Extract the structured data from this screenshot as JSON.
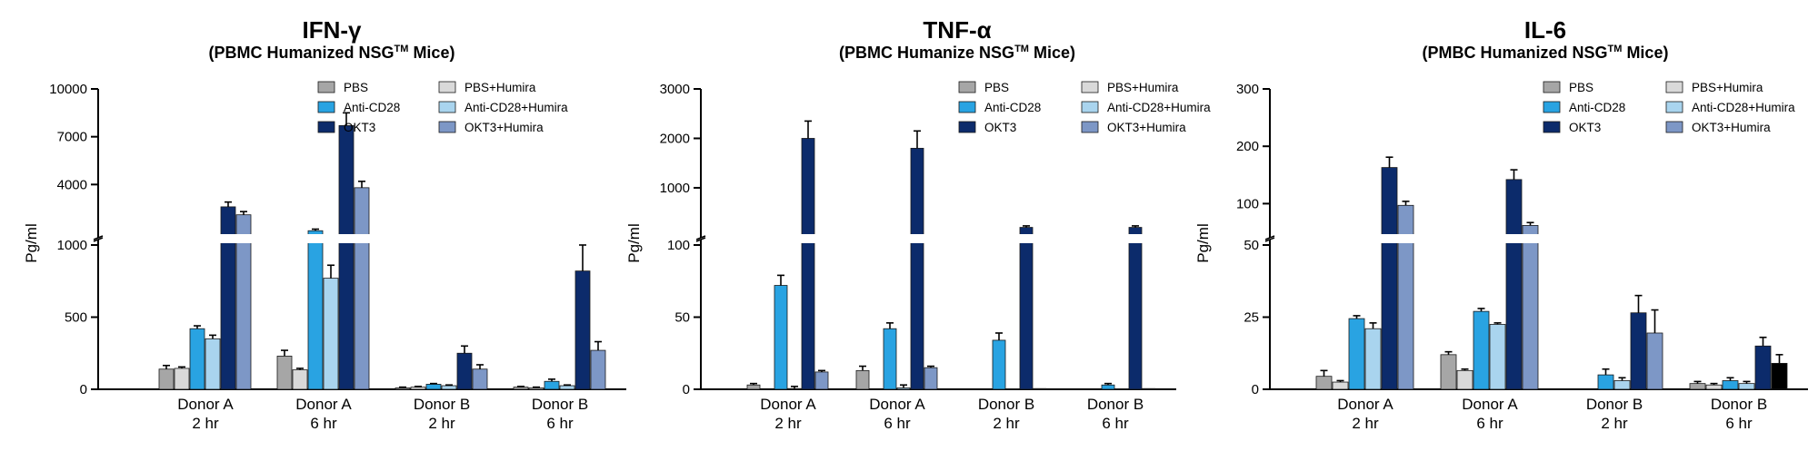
{
  "colors": {
    "PBS": "#a6a6a6",
    "Anti-CD28": "#29a3e2",
    "OKT3": "#0c2b6b",
    "PBS+Humira": "#d9d9d9",
    "Anti-CD28+Humira": "#a9d4ee",
    "OKT3+Humira": "#7d97c6",
    "extra_black": "#000000"
  },
  "chart_data": [
    {
      "type": "bar",
      "title": "IFN-γ",
      "subtitle": "(PBMC Humanized NSG",
      "subtitle_sup": "TM",
      "subtitle_end": " Mice)",
      "ylabel": "Pg/ml",
      "xlabel": "",
      "categories": [
        [
          "Donor A",
          "2 hr"
        ],
        [
          "Donor A",
          "6 hr"
        ],
        [
          "Donor B",
          "2 hr"
        ],
        [
          "Donor B",
          "6 hr"
        ]
      ],
      "ylim_lower": [
        0,
        1000
      ],
      "ylim_upper": [
        1000,
        10000
      ],
      "yticks_lower": [
        0,
        500,
        1000
      ],
      "ytick_labels_lower": [
        "0",
        "500",
        "1000"
      ],
      "yticks_upper": [
        4000,
        7000,
        10000
      ],
      "ytick_labels_upper": [
        "4000",
        "7000",
        "10000"
      ],
      "legend": [
        "PBS",
        "Anti-CD28",
        "OKT3",
        "PBS+Humira",
        "Anti-CD28+Humira",
        "OKT3+Humira"
      ],
      "series": [
        {
          "name": "PBS",
          "values": [
            140,
            230,
            10,
            15
          ],
          "errors": [
            25,
            40,
            5,
            5
          ]
        },
        {
          "name": "PBS+Humira",
          "values": [
            145,
            135,
            15,
            10
          ],
          "errors": [
            10,
            10,
            5,
            5
          ]
        },
        {
          "name": "Anti-CD28",
          "values": [
            420,
            1100,
            35,
            55
          ],
          "errors": [
            20,
            100,
            5,
            15
          ]
        },
        {
          "name": "Anti-CD28+Humira",
          "values": [
            350,
            770,
            25,
            25
          ],
          "errors": [
            25,
            90,
            5,
            5
          ]
        },
        {
          "name": "OKT3",
          "values": [
            2600,
            7700,
            250,
            820
          ],
          "errors": [
            300,
            800,
            50,
            180
          ]
        },
        {
          "name": "OKT3+Humira",
          "values": [
            2100,
            3800,
            140,
            270
          ],
          "errors": [
            200,
            400,
            30,
            60
          ]
        }
      ]
    },
    {
      "type": "bar",
      "title": "TNF-α",
      "subtitle": "(PBMC Humanize NSG",
      "subtitle_sup": "TM",
      "subtitle_end": " Mice)",
      "ylabel": "Pg/ml",
      "xlabel": "",
      "categories": [
        [
          "Donor A",
          "2 hr"
        ],
        [
          "Donor A",
          "6 hr"
        ],
        [
          "Donor B",
          "2 hr"
        ],
        [
          "Donor B",
          "6 hr"
        ]
      ],
      "ylim_lower": [
        0,
        100
      ],
      "ylim_upper": [
        100,
        3000
      ],
      "yticks_lower": [
        0,
        50,
        100
      ],
      "ytick_labels_lower": [
        "0",
        "50",
        "100"
      ],
      "yticks_upper": [
        1000,
        2000,
        3000
      ],
      "ytick_labels_upper": [
        "1000",
        "2000",
        "3000"
      ],
      "legend": [
        "PBS",
        "Anti-CD28",
        "OKT3",
        "PBS+Humira",
        "Anti-CD28+Humira",
        "OKT3+Humira"
      ],
      "series": [
        {
          "name": "PBS",
          "values": [
            3,
            13,
            0,
            0
          ],
          "errors": [
            1,
            3,
            0,
            0
          ]
        },
        {
          "name": "PBS+Humira",
          "values": [
            0,
            0,
            0,
            0
          ],
          "errors": [
            0,
            0,
            0,
            0
          ]
        },
        {
          "name": "Anti-CD28",
          "values": [
            72,
            42,
            34,
            3
          ],
          "errors": [
            7,
            4,
            5,
            1
          ]
        },
        {
          "name": "Anti-CD28+Humira",
          "values": [
            0.5,
            1,
            0.3,
            0.3
          ],
          "errors": [
            1.5,
            2,
            0,
            0
          ]
        },
        {
          "name": "OKT3",
          "values": [
            2000,
            1800,
            200,
            200
          ],
          "errors": [
            350,
            350,
            30,
            30
          ]
        },
        {
          "name": "OKT3+Humira",
          "values": [
            12,
            15,
            0.5,
            0.5
          ],
          "errors": [
            1,
            1,
            0,
            0
          ]
        }
      ]
    },
    {
      "type": "bar",
      "title": "IL-6",
      "subtitle": "(PMBC Humanized NSG",
      "subtitle_sup": "TM",
      "subtitle_end": " Mice)",
      "ylabel": "Pg/ml",
      "xlabel": "",
      "categories": [
        [
          "Donor A",
          "2 hr"
        ],
        [
          "Donor A",
          "6 hr"
        ],
        [
          "Donor B",
          "2 hr"
        ],
        [
          "Donor B",
          "6 hr"
        ]
      ],
      "ylim_lower": [
        0,
        50
      ],
      "ylim_upper": [
        50,
        300
      ],
      "yticks_lower": [
        0,
        25,
        50
      ],
      "ytick_labels_lower": [
        "0",
        "25",
        "50"
      ],
      "yticks_upper": [
        100,
        200,
        300
      ],
      "ytick_labels_upper": [
        "100",
        "200",
        "300"
      ],
      "legend": [
        "PBS",
        "Anti-CD28",
        "OKT3",
        "PBS+Humira",
        "Anti-CD28+Humira",
        "OKT3+Humira"
      ],
      "series": [
        {
          "name": "PBS",
          "values": [
            4.5,
            12,
            0,
            2
          ],
          "errors": [
            2,
            1,
            0,
            0.7
          ]
        },
        {
          "name": "PBS+Humira",
          "values": [
            2.5,
            6.5,
            0,
            1.5
          ],
          "errors": [
            0.5,
            0.5,
            0,
            0.5
          ]
        },
        {
          "name": "Anti-CD28",
          "values": [
            24.5,
            27,
            5,
            3
          ],
          "errors": [
            1,
            1,
            2,
            1
          ]
        },
        {
          "name": "Anti-CD28+Humira",
          "values": [
            21,
            22.5,
            3,
            2
          ],
          "errors": [
            2,
            0.5,
            1,
            0.7
          ]
        },
        {
          "name": "OKT3",
          "values": [
            163,
            142,
            26.5,
            15
          ],
          "errors": [
            18,
            17,
            6,
            3
          ]
        },
        {
          "name": "OKT3+Humira",
          "values": [
            97,
            62,
            19.5,
            9
          ],
          "errors": [
            7,
            5,
            8,
            3
          ],
          "last_color": "#000000"
        }
      ]
    }
  ]
}
